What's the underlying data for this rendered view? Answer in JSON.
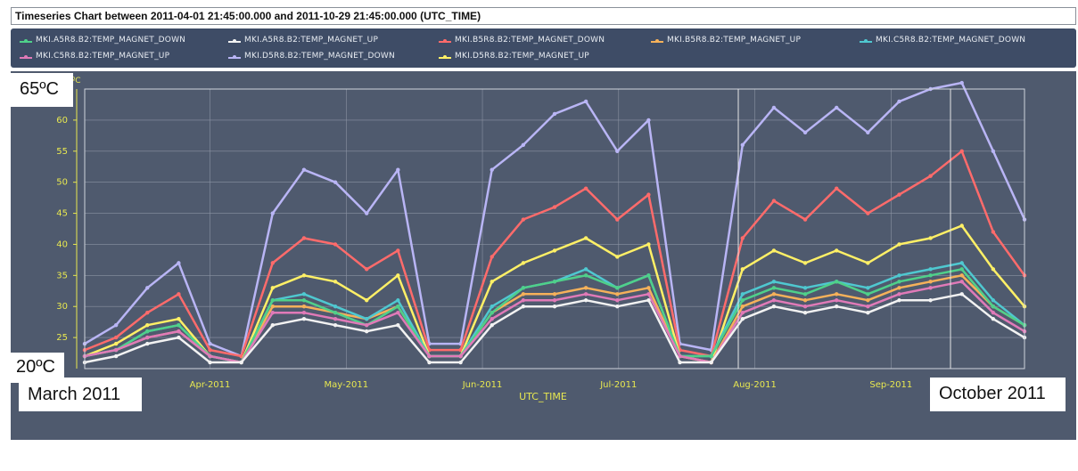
{
  "header": {
    "title": "Timeseries Chart between 2011-04-01 21:45:00.000 and 2011-10-29 21:45:00.000 (UTC_TIME)"
  },
  "legend": [
    {
      "label": "MKI.A5R8.B2:TEMP_MAGNET_DOWN",
      "color": "#4fd08a"
    },
    {
      "label": "MKI.A5R8.B2:TEMP_MAGNET_UP",
      "color": "#f2f2f2"
    },
    {
      "label": "MKI.B5R8.B2:TEMP_MAGNET_DOWN",
      "color": "#ff6b6b"
    },
    {
      "label": "MKI.B5R8.B2:TEMP_MAGNET_UP",
      "color": "#f5b15a"
    },
    {
      "label": "MKI.C5R8.B2:TEMP_MAGNET_DOWN",
      "color": "#4fc8d0"
    },
    {
      "label": "MKI.C5R8.B2:TEMP_MAGNET_UP",
      "color": "#e07ab8"
    },
    {
      "label": "MKI.D5R8.B2:TEMP_MAGNET_DOWN",
      "color": "#b9b5f5"
    },
    {
      "label": "MKI.D5R8.B2:TEMP_MAGNET_UP",
      "color": "#fff066"
    }
  ],
  "annotations": {
    "y_top": "65ºC",
    "y_bottom": "20ºC",
    "x_start": "March 2011",
    "x_end": "October 2011"
  },
  "chart_data": {
    "type": "line",
    "xlabel": "UTC_TIME",
    "ylabel": "",
    "unit_label": "ºC",
    "ylim": [
      20,
      65
    ],
    "y_ticks": [
      25,
      30,
      35,
      40,
      45,
      50,
      55,
      60
    ],
    "x_ticks": [
      "Apr-2011",
      "May-2011",
      "Jun-2011",
      "Jul-2011",
      "Aug-2011",
      "Sep-2011"
    ],
    "grid": true,
    "legend_position": "top",
    "x": [
      "Mar-12",
      "Mar-19",
      "Mar-26",
      "Apr-02",
      "Apr-09",
      "Apr-16",
      "Apr-23",
      "Apr-30",
      "May-07",
      "May-14",
      "May-21",
      "May-28",
      "Jun-04",
      "Jun-11",
      "Jun-18",
      "Jun-25",
      "Jul-02",
      "Jul-09",
      "Jul-16",
      "Jul-23",
      "Jul-30",
      "Aug-06",
      "Aug-13",
      "Aug-20",
      "Aug-27",
      "Sep-03",
      "Sep-10",
      "Sep-17",
      "Sep-24",
      "Oct-01",
      "Oct-08"
    ],
    "series": [
      {
        "name": "MKI.A5R8.B2:TEMP_MAGNET_DOWN",
        "values": [
          22,
          23,
          26,
          27,
          22,
          21,
          31,
          31,
          29,
          27,
          30,
          22,
          22,
          29,
          33,
          34,
          35,
          33,
          35,
          22,
          22,
          31,
          33,
          32,
          34,
          32,
          34,
          35,
          36,
          30,
          27
        ]
      },
      {
        "name": "MKI.A5R8.B2:TEMP_MAGNET_UP",
        "values": [
          21,
          22,
          24,
          25,
          21,
          21,
          27,
          28,
          27,
          26,
          27,
          21,
          21,
          27,
          30,
          30,
          31,
          30,
          31,
          21,
          21,
          28,
          30,
          29,
          30,
          29,
          31,
          31,
          32,
          28,
          25
        ]
      },
      {
        "name": "MKI.B5R8.B2:TEMP_MAGNET_DOWN",
        "values": [
          23,
          25,
          29,
          32,
          23,
          22,
          37,
          41,
          40,
          36,
          39,
          23,
          23,
          38,
          44,
          46,
          49,
          44,
          48,
          23,
          22,
          41,
          47,
          44,
          49,
          45,
          48,
          51,
          55,
          42,
          35
        ]
      },
      {
        "name": "MKI.B5R8.B2:TEMP_MAGNET_UP",
        "values": [
          22,
          23,
          25,
          26,
          22,
          21,
          30,
          30,
          29,
          28,
          30,
          22,
          22,
          29,
          32,
          32,
          33,
          32,
          33,
          22,
          21,
          30,
          32,
          31,
          32,
          31,
          33,
          34,
          35,
          30,
          27
        ]
      },
      {
        "name": "MKI.C5R8.B2:TEMP_MAGNET_DOWN",
        "values": [
          22,
          23,
          26,
          27,
          22,
          21,
          31,
          32,
          30,
          28,
          31,
          22,
          22,
          30,
          33,
          34,
          36,
          33,
          35,
          22,
          22,
          32,
          34,
          33,
          34,
          33,
          35,
          36,
          37,
          31,
          27
        ]
      },
      {
        "name": "MKI.C5R8.B2:TEMP_MAGNET_UP",
        "values": [
          22,
          23,
          25,
          26,
          22,
          21,
          29,
          29,
          28,
          27,
          29,
          22,
          22,
          28,
          31,
          31,
          32,
          31,
          32,
          22,
          21,
          29,
          31,
          30,
          31,
          30,
          32,
          33,
          34,
          29,
          26
        ]
      },
      {
        "name": "MKI.D5R8.B2:TEMP_MAGNET_DOWN",
        "values": [
          24,
          27,
          33,
          37,
          24,
          22,
          45,
          52,
          50,
          45,
          52,
          24,
          24,
          52,
          56,
          61,
          63,
          55,
          60,
          24,
          23,
          56,
          62,
          58,
          62,
          58,
          63,
          65,
          66,
          55,
          44
        ]
      },
      {
        "name": "MKI.D5R8.B2:TEMP_MAGNET_UP",
        "values": [
          22,
          24,
          27,
          28,
          22,
          21,
          33,
          35,
          34,
          31,
          35,
          22,
          22,
          34,
          37,
          39,
          41,
          38,
          40,
          22,
          21,
          36,
          39,
          37,
          39,
          37,
          40,
          41,
          43,
          36,
          30
        ]
      }
    ]
  }
}
